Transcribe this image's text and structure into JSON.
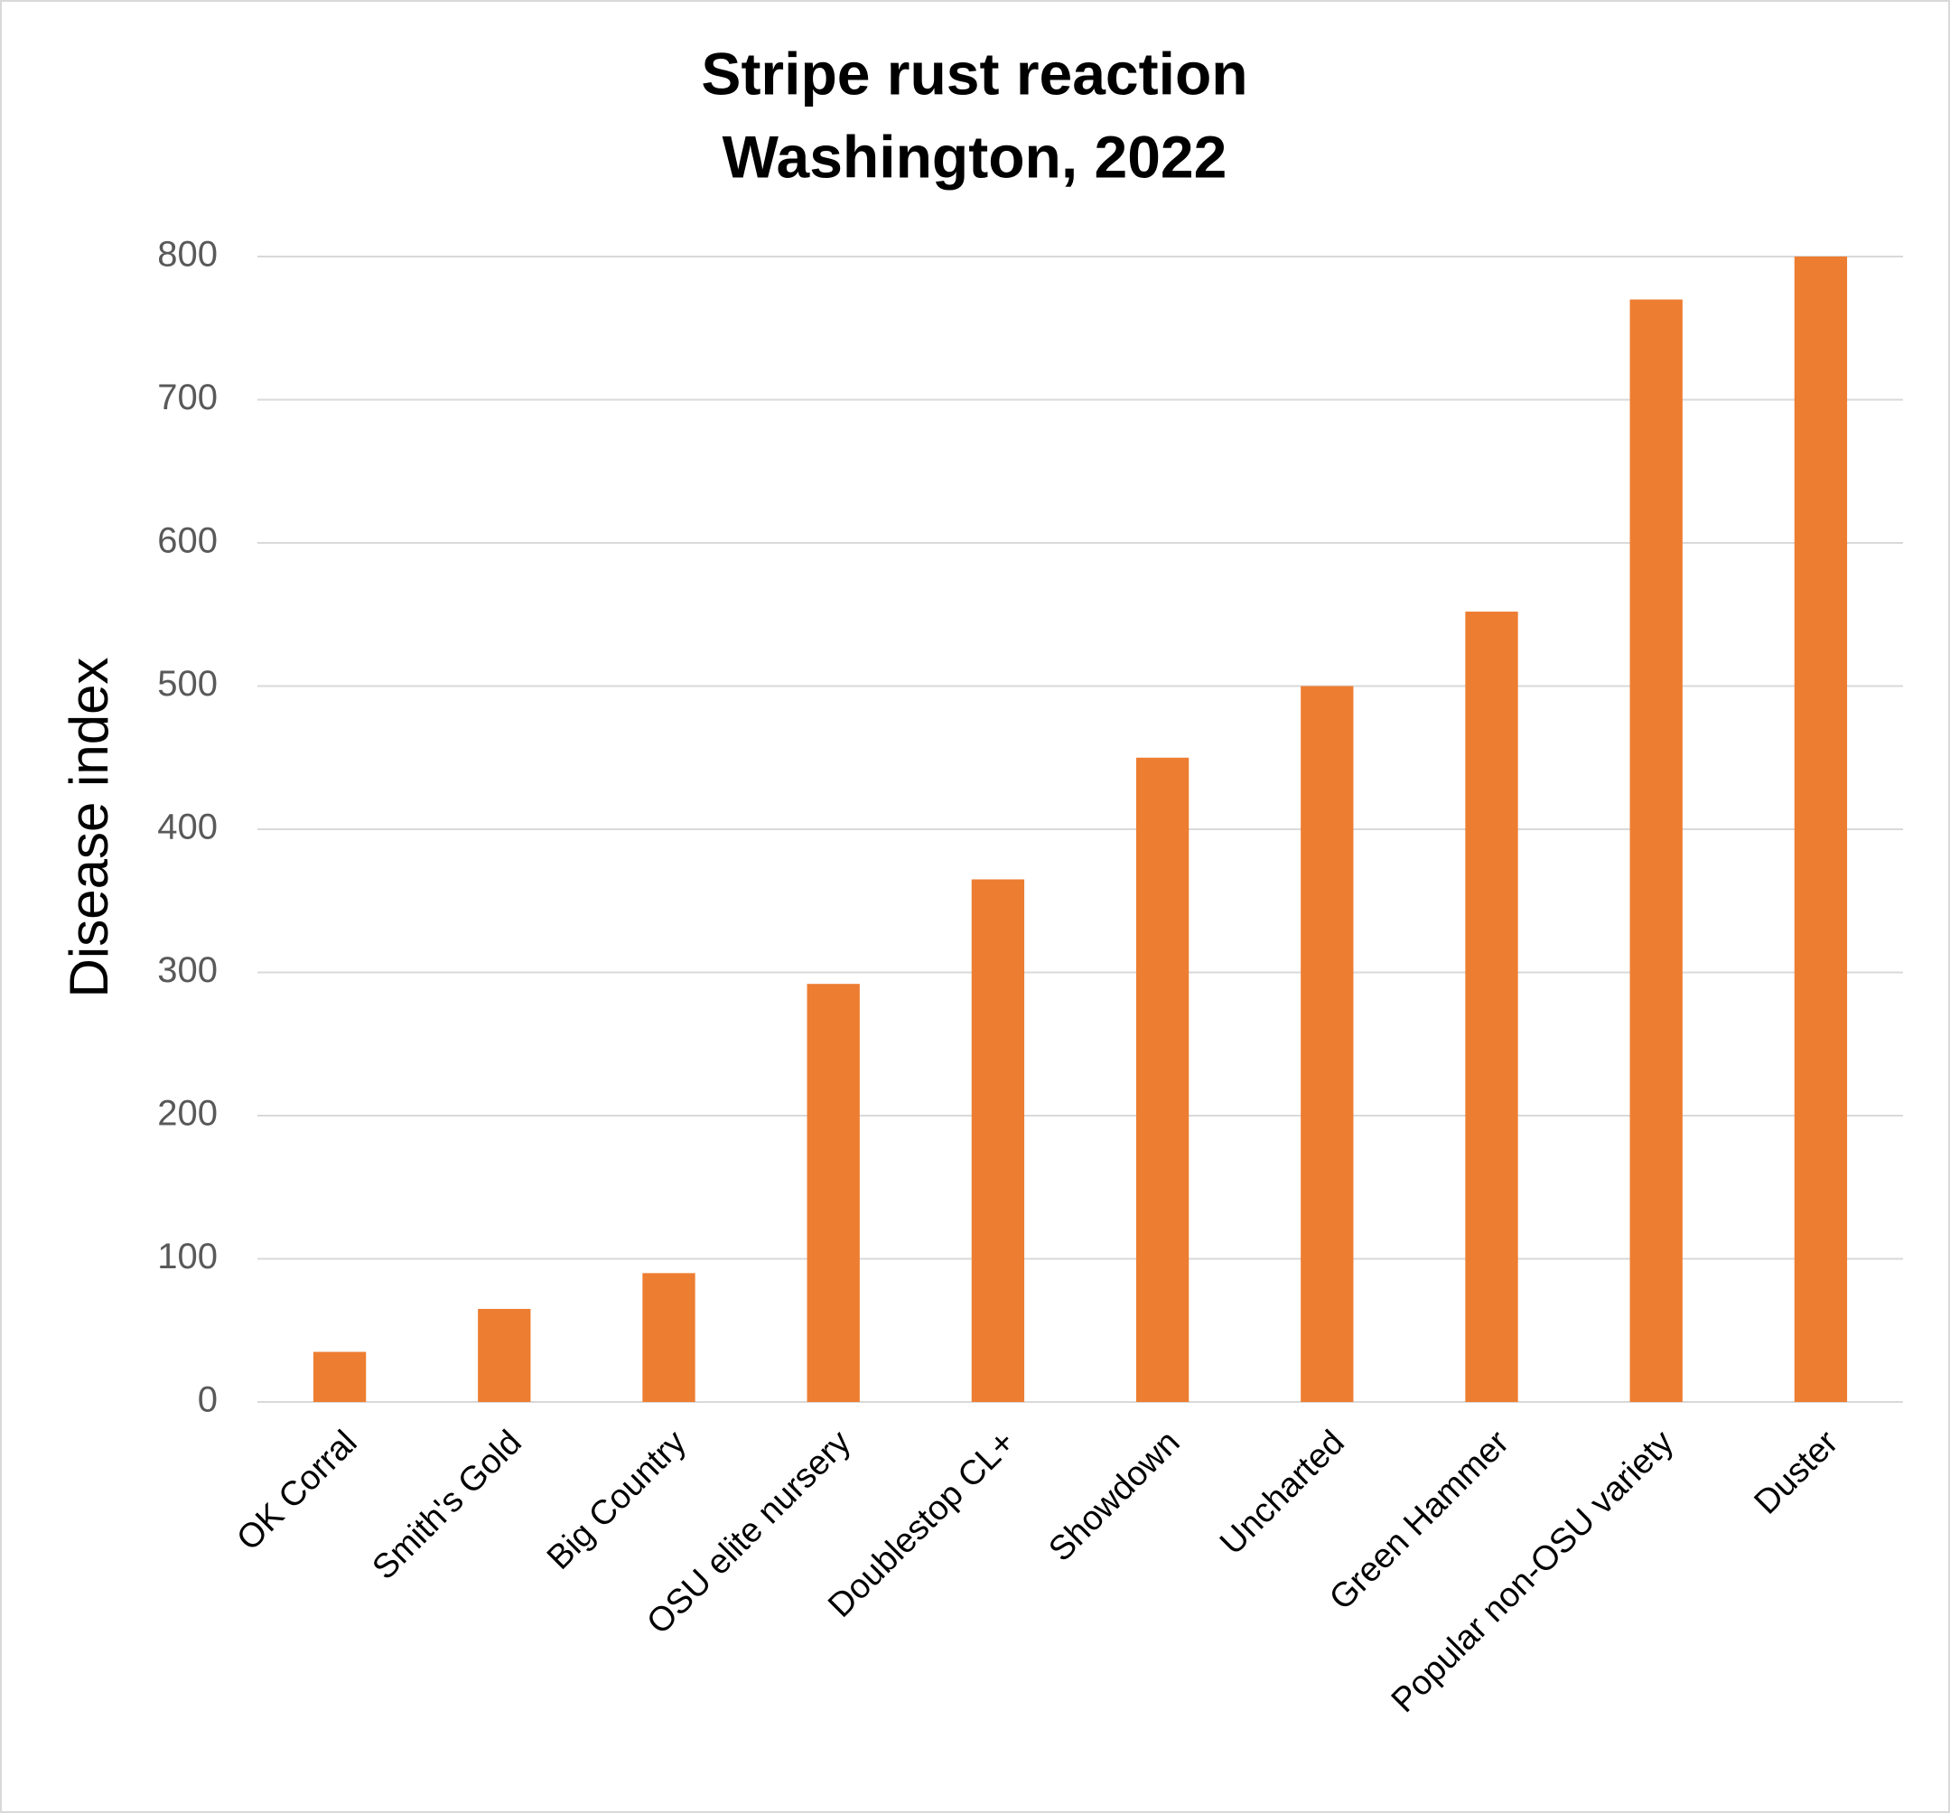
{
  "chart_data": {
    "type": "bar",
    "title": "Stripe rust reaction",
    "subtitle": "Washington, 2022",
    "y_label": "Disease index",
    "categories": [
      "OK Corral",
      "Smith's Gold",
      "Big Country",
      "OSU elite nursery",
      "Doublestop CL+",
      "Showdown",
      "Uncharted",
      "Green Hammer",
      "Popular non-OSU variety",
      "Duster"
    ],
    "values": [
      35,
      65,
      90,
      292,
      365,
      450,
      500,
      552,
      770,
      800
    ],
    "color": "#ed7d31",
    "ylim": [
      0,
      800
    ],
    "yticks": [
      0,
      100,
      200,
      300,
      400,
      500,
      600,
      700,
      800
    ],
    "grid": true
  }
}
